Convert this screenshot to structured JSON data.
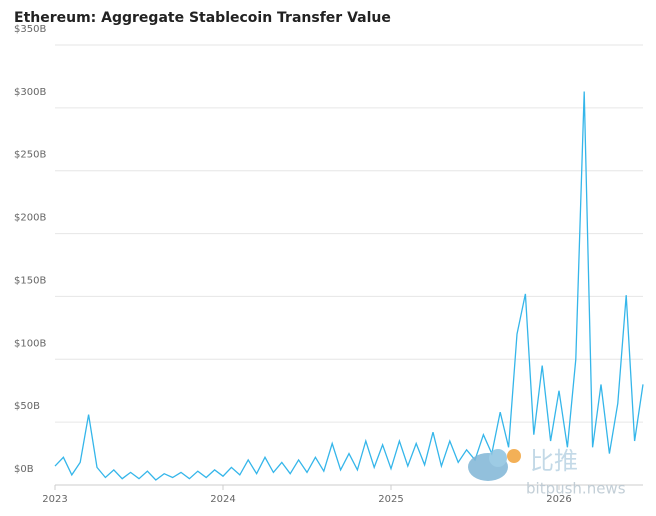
{
  "chart_data": {
    "type": "line",
    "title": "Ethereum: Aggregate Stablecoin Transfer Value",
    "x": [
      2023.0,
      2023.05,
      2023.1,
      2023.15,
      2023.2,
      2023.25,
      2023.3,
      2023.35,
      2023.4,
      2023.45,
      2023.5,
      2023.55,
      2023.6,
      2023.65,
      2023.7,
      2023.75,
      2023.8,
      2023.85,
      2023.9,
      2023.95,
      2024.0,
      2024.05,
      2024.1,
      2024.15,
      2024.2,
      2024.25,
      2024.3,
      2024.35,
      2024.4,
      2024.45,
      2024.5,
      2024.55,
      2024.6,
      2024.65,
      2024.7,
      2024.75,
      2024.8,
      2024.85,
      2024.9,
      2024.95,
      2025.0,
      2025.05,
      2025.1,
      2025.15,
      2025.2,
      2025.25,
      2025.3,
      2025.35,
      2025.4,
      2025.45,
      2025.5,
      2025.55,
      2025.6,
      2025.65,
      2025.7,
      2025.75,
      2025.8,
      2025.85,
      2025.9,
      2025.95,
      2026.0,
      2026.05,
      2026.1,
      2026.15,
      2026.2,
      2026.25,
      2026.3,
      2026.35,
      2026.4,
      2026.45,
      2026.5
    ],
    "series": [
      {
        "name": "Aggregate Stablecoin Transfer Value",
        "color": "#35b6ea",
        "values": [
          15,
          22,
          8,
          18,
          56,
          14,
          6,
          12,
          5,
          10,
          5,
          11,
          4,
          9,
          6,
          10,
          5,
          11,
          6,
          12,
          7,
          14,
          8,
          20,
          9,
          22,
          10,
          18,
          9,
          20,
          10,
          22,
          11,
          33,
          12,
          25,
          12,
          35,
          14,
          32,
          13,
          35,
          15,
          33,
          16,
          42,
          15,
          35,
          18,
          28,
          20,
          40,
          25,
          58,
          30,
          120,
          152,
          40,
          95,
          35,
          75,
          30,
          100,
          313,
          30,
          80,
          25,
          65,
          151,
          35,
          80
        ]
      }
    ],
    "xlim": [
      2023,
      2026.5
    ],
    "xticks": [
      2023,
      2024,
      2025,
      2026
    ],
    "ylim": [
      0,
      350
    ],
    "yticks": [
      {
        "value": 0,
        "label": "$0B"
      },
      {
        "value": 50,
        "label": "$50B"
      },
      {
        "value": 100,
        "label": "$100B"
      },
      {
        "value": 150,
        "label": "$150B"
      },
      {
        "value": 200,
        "label": "$200B"
      },
      {
        "value": 250,
        "label": "$250B"
      },
      {
        "value": 300,
        "label": "$300B"
      },
      {
        "value": 350,
        "label": "$350B"
      }
    ],
    "grid": true,
    "watermark": {
      "brand": "比推",
      "site": "bitpush.news"
    }
  }
}
